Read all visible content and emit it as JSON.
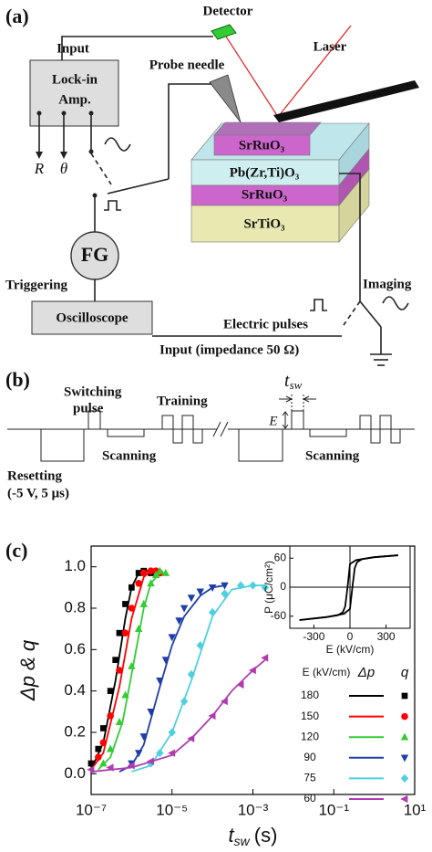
{
  "panel_a": {
    "label": "(a)",
    "detector": "Detector",
    "input": "Input",
    "laser": "Laser",
    "lock_in": [
      "Lock-in",
      "Amp."
    ],
    "probe_needle": "Probe needle",
    "r": "R",
    "theta": "θ",
    "layers": {
      "top_electrode": "SrRuO₃",
      "ferroelectric": "Pb(Zr,Ti)O₃",
      "bottom_electrode": "SrRuO₃",
      "substrate": "SrTiO₃"
    },
    "fg": "FG",
    "triggering": "Triggering",
    "imaging": "Imaging",
    "electric_pulses": "Electric pulses",
    "oscilloscope": "Oscilloscope",
    "scope_input": "Input (impedance 50 Ω)"
  },
  "panel_b": {
    "label": "(b)",
    "switching_pulse": [
      "Switching",
      "pulse"
    ],
    "training": "Training",
    "t_sw": {
      "symbol": "t",
      "subscript": "sw"
    },
    "e": "E",
    "scanning": [
      "Scanning",
      "Scanning"
    ],
    "resetting": [
      "Resetting",
      "(-5 V, 5 μs)"
    ]
  },
  "panel_c_label": "(c)",
  "chart_data": [
    {
      "type": "scatter",
      "y_label": "Δp & q",
      "x_label": {
        "symbol": "t",
        "subscript": "sw",
        "unit": "(s)"
      },
      "xscale": "log",
      "xlim": [
        1e-07,
        10
      ],
      "xticks": [
        {
          "value": 1e-07,
          "label": "10⁻⁷"
        },
        {
          "value": 1e-05,
          "label": "10⁻⁵"
        },
        {
          "value": 0.001,
          "label": "10⁻³"
        },
        {
          "value": 0.1,
          "label": "10⁻¹"
        },
        {
          "value": 10,
          "label": "10¹"
        }
      ],
      "ylim": [
        -0.1,
        1.1
      ],
      "yticks": [
        {
          "value": 0,
          "label": "0.0"
        },
        0.2,
        0.4,
        0.6,
        0.8,
        {
          "value": 1,
          "label": "1.0"
        }
      ],
      "legend": {
        "title": "E (kV/cm)",
        "line_header": "Δp",
        "marker_header": "q",
        "position": "lower right"
      },
      "series": [
        {
          "name": "180",
          "color": "#000000",
          "marker": "square",
          "x": [
            1e-07,
            1.5e-07,
            2e-07,
            3e-07,
            4e-07,
            5e-07,
            7e-07,
            1e-06,
            1.5e-06,
            2e-06,
            3e-06
          ],
          "values": [
            0.05,
            0.12,
            0.22,
            0.4,
            0.55,
            0.68,
            0.82,
            0.9,
            0.97,
            0.98,
            0.97
          ],
          "fit_x": [
            1e-07,
            2e-07,
            4e-07,
            7e-07,
            1e-06,
            1.5e-06,
            2e-06,
            3e-06
          ],
          "fit_values": [
            0.02,
            0.15,
            0.45,
            0.75,
            0.9,
            0.97,
            0.98,
            0.98
          ]
        },
        {
          "name": "150",
          "color": "#ff0000",
          "marker": "circle",
          "x": [
            1.5e-07,
            2e-07,
            3e-07,
            5e-07,
            7e-07,
            1e-06,
            1.5e-06,
            2e-06,
            3e-06,
            4e-06,
            5e-06
          ],
          "values": [
            0.08,
            0.15,
            0.28,
            0.5,
            0.68,
            0.8,
            0.92,
            0.97,
            0.98,
            0.98,
            0.97
          ],
          "fit_x": [
            1e-07,
            2e-07,
            5e-07,
            1e-06,
            2e-06,
            3e-06,
            5e-06
          ],
          "fit_values": [
            0.02,
            0.1,
            0.42,
            0.75,
            0.95,
            0.98,
            0.98
          ]
        },
        {
          "name": "120",
          "color": "#33cc33",
          "marker": "triangle-up",
          "x": [
            2e-07,
            3e-07,
            5e-07,
            7e-07,
            1e-06,
            1.5e-06,
            2e-06,
            3e-06,
            4e-06,
            5e-06,
            7e-06
          ],
          "values": [
            0.05,
            0.12,
            0.25,
            0.38,
            0.52,
            0.7,
            0.82,
            0.92,
            0.96,
            0.98,
            0.97
          ],
          "fit_x": [
            1.5e-07,
            3e-07,
            6e-07,
            1e-06,
            2e-06,
            3e-06,
            5e-06,
            7e-06
          ],
          "fit_values": [
            0.02,
            0.08,
            0.25,
            0.48,
            0.8,
            0.92,
            0.97,
            0.97
          ]
        },
        {
          "name": "90",
          "color": "#1f3fa8",
          "marker": "triangle-down",
          "x": [
            1e-06,
            1.5e-06,
            2e-06,
            3e-06,
            5e-06,
            7e-06,
            1e-05,
            1.5e-05,
            2e-05,
            3e-05,
            5e-05,
            0.0001,
            0.0002
          ],
          "values": [
            0.05,
            0.1,
            0.18,
            0.3,
            0.45,
            0.55,
            0.66,
            0.74,
            0.8,
            0.85,
            0.88,
            0.9,
            0.91
          ],
          "fit_x": [
            5e-07,
            1e-06,
            2e-06,
            5e-06,
            1e-05,
            2e-05,
            5e-05,
            0.0001,
            0.0002
          ],
          "fit_values": [
            0.01,
            0.04,
            0.14,
            0.42,
            0.62,
            0.76,
            0.86,
            0.9,
            0.91
          ]
        },
        {
          "name": "75",
          "color": "#4fd0e0",
          "marker": "diamond",
          "x": [
            3e-06,
            5e-06,
            1e-05,
            2e-05,
            3e-05,
            5e-05,
            0.0001,
            0.0002,
            0.0005,
            0.001,
            0.002
          ],
          "values": [
            0.05,
            0.1,
            0.2,
            0.35,
            0.48,
            0.62,
            0.78,
            0.87,
            0.91,
            0.91,
            0.9
          ],
          "fit_x": [
            1e-06,
            3e-06,
            1e-05,
            3e-05,
            0.0001,
            0.0003,
            0.001,
            0.002
          ],
          "fit_values": [
            0.01,
            0.04,
            0.2,
            0.45,
            0.76,
            0.89,
            0.91,
            0.91
          ]
        },
        {
          "name": "60",
          "color": "#b03cb0",
          "marker": "triangle-left",
          "x": [
            1e-07,
            3e-07,
            1e-06,
            3e-06,
            1e-05,
            3e-05,
            0.0001,
            0.0002,
            0.0005,
            0.001,
            0.002
          ],
          "values": [
            0.02,
            0.03,
            0.04,
            0.06,
            0.1,
            0.17,
            0.28,
            0.35,
            0.43,
            0.5,
            0.56
          ],
          "fit_x": [
            1e-07,
            1e-06,
            1e-05,
            3e-05,
            0.0001,
            0.0003,
            0.001,
            0.002
          ],
          "fit_values": [
            0.01,
            0.03,
            0.09,
            0.17,
            0.28,
            0.4,
            0.5,
            0.55
          ]
        }
      ]
    },
    {
      "type": "line",
      "x_label": "E (kV/cm)",
      "y_label": "P (μC/cm²)",
      "xlim": [
        -500,
        500
      ],
      "ylim": [
        -85,
        85
      ],
      "xticks": [
        -300,
        0,
        300
      ],
      "yticks": [
        -60,
        0,
        60
      ],
      "series": [
        {
          "color": "#000000",
          "x": [
            -420,
            -200,
            -50,
            0,
            20,
            40,
            60,
            100,
            200,
            400
          ],
          "values": [
            -68,
            -62,
            -55,
            -45,
            0,
            40,
            52,
            58,
            62,
            66
          ]
        },
        {
          "color": "#000000",
          "x": [
            400,
            200,
            50,
            0,
            -20,
            -40,
            -60,
            -100,
            -200,
            -420
          ],
          "values": [
            66,
            62,
            56,
            48,
            0,
            -40,
            -52,
            -58,
            -62,
            -68
          ]
        }
      ]
    }
  ]
}
